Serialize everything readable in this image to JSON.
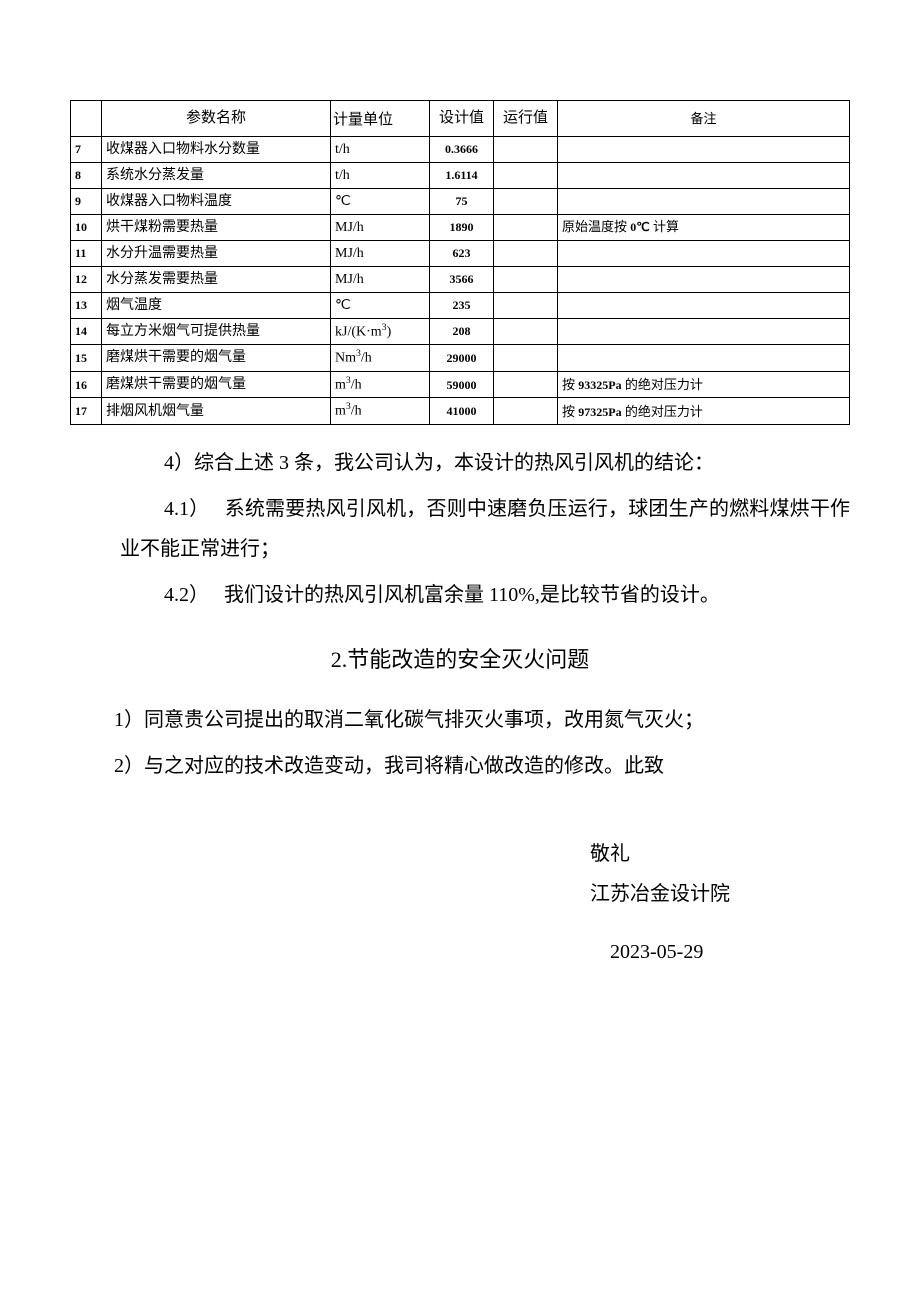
{
  "table": {
    "header": {
      "idx": "",
      "name": "参数名称",
      "unit": "计量单位",
      "design": "设计值",
      "run": "运行值",
      "remark": "备注"
    },
    "rows": [
      {
        "idx": "7",
        "name": "收煤器入口物料水分数量",
        "unit": "t/h",
        "design": "0.3666",
        "run": "",
        "remark": ""
      },
      {
        "idx": "8",
        "name": "系统水分蒸发量",
        "unit": "t/h",
        "design": "1.6114",
        "run": "",
        "remark": ""
      },
      {
        "idx": "9",
        "name": "收煤器入口物料温度",
        "unit": "℃",
        "design": "75",
        "run": "",
        "remark": ""
      },
      {
        "idx": "10",
        "name": "烘干煤粉需要热量",
        "unit": "MJ/h",
        "design": "1890",
        "run": "",
        "remark": "原始温度按 0℃ 计算",
        "remark_small": true
      },
      {
        "idx": "11",
        "name": "水分升温需要热量",
        "unit": "MJ/h",
        "design": "623",
        "run": "",
        "remark": ""
      },
      {
        "idx": "12",
        "name": "水分蒸发需要热量",
        "unit": "MJ/h",
        "design": "3566",
        "run": "",
        "remark": ""
      },
      {
        "idx": "13",
        "name": "烟气温度",
        "unit": "℃",
        "design": "235",
        "run": "",
        "remark": ""
      },
      {
        "idx": "14",
        "name": "每立方米烟气可提供热量",
        "unit": "kJ/(K·m³)",
        "design": "208",
        "run": "",
        "remark": ""
      },
      {
        "idx": "15",
        "name": "磨煤烘干需要的烟气量",
        "unit": "Nm³/h",
        "design": "29000",
        "run": "",
        "remark": ""
      },
      {
        "idx": "16",
        "name": "磨煤烘干需要的烟气量",
        "unit": "m³/h",
        "design": "59000",
        "run": "",
        "remark": "按 93325Pa 的绝对压力计",
        "remark_small": true
      },
      {
        "idx": "17",
        "name": "排烟风机烟气量",
        "unit": "m³/h",
        "design": "41000",
        "run": "",
        "remark": "按 97325Pa 的绝对压力计",
        "remark_small": true
      }
    ]
  },
  "body": {
    "p4": "4）综合上述 3 条，我公司认为，本设计的热风引风机的结论：",
    "p4_1": "4.1）　 系统需要热风引风机，否则中速磨负压运行，球团生产的燃料煤烘干作业不能正常进行；",
    "p4_2": "4.2）　 我们设计的热风引风机富余量 110%,是比较节省的设计。",
    "heading2": "2.节能改造的安全灭火问题",
    "p2_1": "1）同意贵公司提出的取消二氧化碳气排灭火事项，改用氮气灭火；",
    "p2_2": "2）与之对应的技术改造变动，我司将精心做改造的修改。此致"
  },
  "signature": {
    "salute": "敬礼",
    "org": "江苏冶金设计院",
    "date": "2023-05-29"
  }
}
